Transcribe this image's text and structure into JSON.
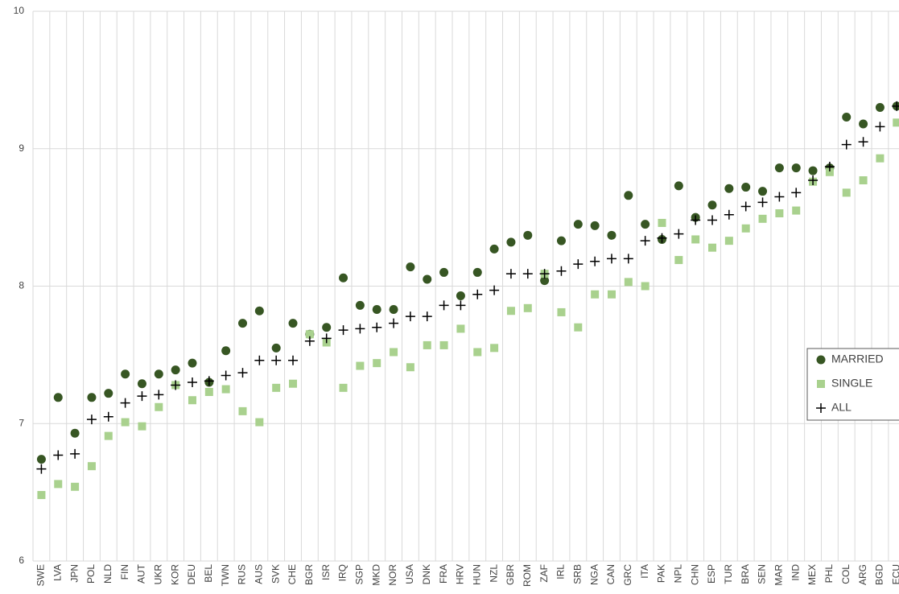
{
  "chart_data": {
    "type": "scatter",
    "categories": [
      "SWE",
      "LVA",
      "JPN",
      "POL",
      "NLD",
      "FIN",
      "AUT",
      "UKR",
      "KOR",
      "DEU",
      "BEL",
      "TWN",
      "RUS",
      "AUS",
      "SVK",
      "CHE",
      "BGR",
      "ISR",
      "IRQ",
      "SGP",
      "MKD",
      "NOR",
      "USA",
      "DNK",
      "FRA",
      "HRV",
      "HUN",
      "NZL",
      "GBR",
      "ROM",
      "ZAF",
      "IRL",
      "SRB",
      "NGA",
      "CAN",
      "GRC",
      "ITA",
      "PAK",
      "NPL",
      "CHN",
      "ESP",
      "TUR",
      "BRA",
      "SEN",
      "MAR",
      "IND",
      "MEX",
      "PHL",
      "COL",
      "ARG",
      "BGD",
      "ECU"
    ],
    "series": [
      {
        "name": "MARRIED",
        "color": "#375623",
        "marker": "circle",
        "values": [
          6.74,
          7.19,
          6.93,
          7.19,
          7.22,
          7.36,
          7.29,
          7.36,
          7.39,
          7.44,
          7.3,
          7.53,
          7.73,
          7.82,
          7.55,
          7.73,
          7.65,
          7.7,
          8.06,
          7.86,
          7.83,
          7.83,
          8.14,
          8.05,
          8.1,
          7.93,
          8.1,
          8.27,
          8.32,
          8.37,
          8.04,
          8.33,
          8.45,
          8.44,
          8.37,
          8.66,
          8.45,
          8.34,
          8.73,
          8.5,
          8.59,
          8.71,
          8.72,
          8.69,
          8.86,
          8.86,
          8.84,
          8.86,
          9.23,
          9.18,
          9.3,
          9.31
        ]
      },
      {
        "name": "SINGLE",
        "color": "#a9d18e",
        "marker": "square",
        "values": [
          6.48,
          6.56,
          6.54,
          6.69,
          6.91,
          7.01,
          6.98,
          7.12,
          7.28,
          7.17,
          7.23,
          7.25,
          7.09,
          7.01,
          7.26,
          7.29,
          7.65,
          7.59,
          7.26,
          7.42,
          7.44,
          7.52,
          7.41,
          7.57,
          7.57,
          7.69,
          7.52,
          7.55,
          7.82,
          7.84,
          8.09,
          7.81,
          7.7,
          7.94,
          7.94,
          8.03,
          8.0,
          8.46,
          8.19,
          8.34,
          8.28,
          8.33,
          8.42,
          8.49,
          8.53,
          8.55,
          8.76,
          8.83,
          8.68,
          8.77,
          8.93,
          9.19
        ]
      },
      {
        "name": "ALL",
        "color": "#000000",
        "marker": "plus",
        "values": [
          6.67,
          6.77,
          6.78,
          7.03,
          7.05,
          7.15,
          7.2,
          7.21,
          7.28,
          7.3,
          7.31,
          7.35,
          7.37,
          7.46,
          7.46,
          7.46,
          7.6,
          7.62,
          7.68,
          7.69,
          7.7,
          7.73,
          7.78,
          7.78,
          7.86,
          7.86,
          7.94,
          7.97,
          8.09,
          8.09,
          8.09,
          8.11,
          8.16,
          8.18,
          8.2,
          8.2,
          8.33,
          8.35,
          8.38,
          8.48,
          8.48,
          8.52,
          8.58,
          8.61,
          8.65,
          8.68,
          8.77,
          8.87,
          9.03,
          9.05,
          9.16,
          9.31
        ]
      }
    ],
    "ylim": [
      6,
      10
    ],
    "yticks": [
      6,
      7,
      8,
      9,
      10
    ],
    "grid": true,
    "legend": "right"
  }
}
